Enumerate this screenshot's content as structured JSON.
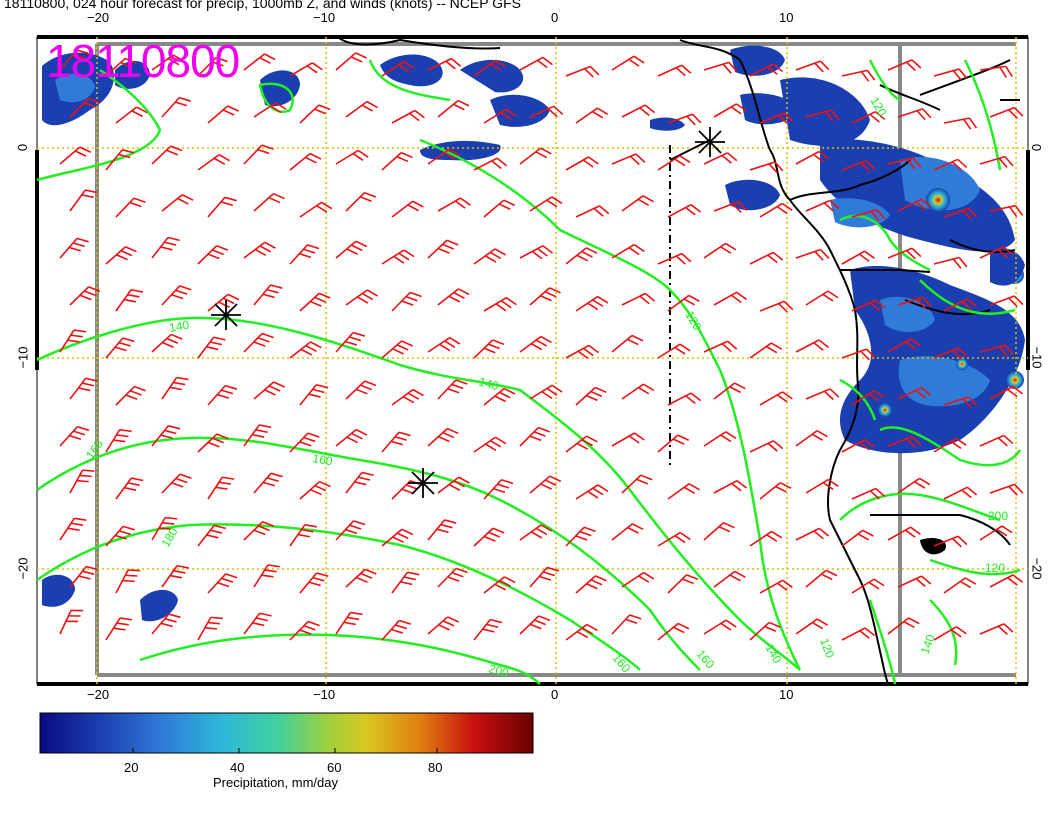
{
  "title": "18110800, 024 hour forecast for precip, 1000mb Z, and winds (knots) -- NCEP GFS",
  "datestamp": "18110800",
  "axes": {
    "top_lon_ticks": [
      "−20",
      "−10",
      "0",
      "10"
    ],
    "bottom_lon_ticks": [
      "−20",
      "−10",
      "0",
      "10"
    ],
    "left_lat_ticks": [
      "0",
      "−10",
      "−20"
    ],
    "right_lat_ticks": [
      "0",
      "−10",
      "−20"
    ]
  },
  "contour_labels": [
    "140",
    "140",
    "160",
    "160",
    "180",
    "200",
    "160",
    "160",
    "140",
    "120",
    "120",
    "120",
    "120",
    "140",
    "200"
  ],
  "colorbar": {
    "title": "Precipitation, mm/day",
    "tick_labels": [
      "20",
      "40",
      "60",
      "80"
    ],
    "colors": [
      "#0a0a80",
      "#1a3fb0",
      "#2f7bd8",
      "#2fb8d8",
      "#3fd0a0",
      "#9ad040",
      "#d8c820",
      "#e08010",
      "#c81010",
      "#6a0000"
    ]
  },
  "colors": {
    "contour": "#22ee22",
    "barb": "#ee1111",
    "grid": "#d8c000",
    "datestamp": "#ee00ee",
    "coast": "#000000"
  }
}
